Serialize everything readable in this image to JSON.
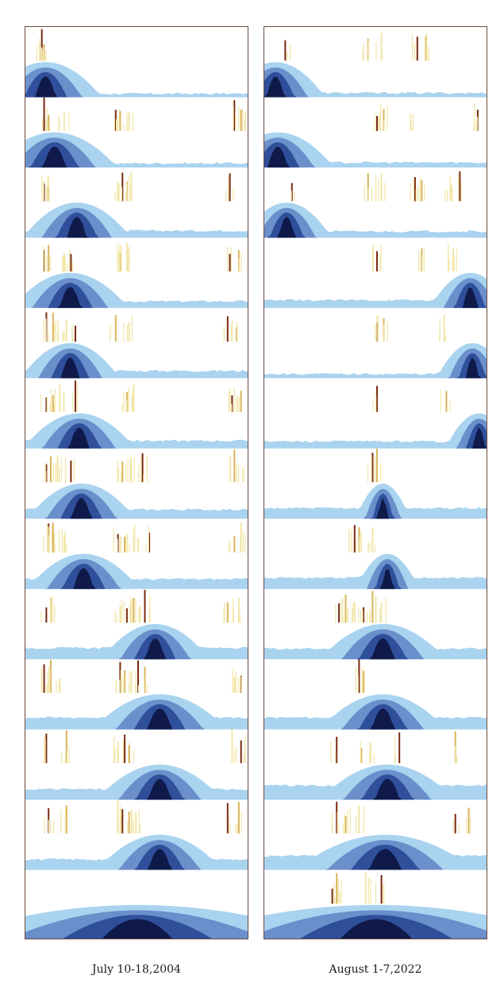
{
  "chart_data": {
    "type": "area",
    "title": "",
    "colors": {
      "band_light": "#a9d3ef",
      "band_mid": "#6b8fcb",
      "band_dark": "#2f4f9a",
      "band_core": "#0f1a4a",
      "event_light": "#f2e6a8",
      "event_mid": "#d9b45a",
      "event_dark": "#7a2a10"
    },
    "panels": [
      {
        "id": "left",
        "caption": "July 10-18,2004",
        "rows": [
          {
            "peak": 0.09,
            "width": 0.25,
            "plateau": 0.1,
            "events": [
              0.07,
              0.08
            ]
          },
          {
            "peak": 0.13,
            "width": 0.28,
            "plateau": 0.12,
            "events": [
              0.08,
              0.1,
              0.17,
              0.4,
              0.42,
              0.46,
              0.93,
              0.96
            ]
          },
          {
            "peak": 0.23,
            "width": 0.24,
            "plateau": 0.2,
            "events": [
              0.08,
              0.1,
              0.41,
              0.43,
              0.45,
              0.47,
              0.91
            ]
          },
          {
            "peak": 0.2,
            "width": 0.26,
            "plateau": 0.19,
            "events": [
              0.08,
              0.1,
              0.17,
              0.2,
              0.42,
              0.45,
              0.91,
              0.95
            ]
          },
          {
            "peak": 0.2,
            "width": 0.22,
            "plateau": 0.21,
            "events": [
              0.09,
              0.12,
              0.18,
              0.22,
              0.4,
              0.46,
              0.9,
              0.94
            ]
          },
          {
            "peak": 0.24,
            "width": 0.25,
            "plateau": 0.22,
            "events": [
              0.09,
              0.12,
              0.15,
              0.22,
              0.45,
              0.48,
              0.92,
              0.96
            ]
          },
          {
            "peak": 0.25,
            "width": 0.24,
            "plateau": 0.26,
            "events": [
              0.09,
              0.11,
              0.14,
              0.2,
              0.43,
              0.47,
              0.52,
              0.93,
              0.97
            ]
          },
          {
            "peak": 0.26,
            "width": 0.25,
            "plateau": 0.28,
            "events": [
              0.1,
              0.12,
              0.17,
              0.41,
              0.44,
              0.5,
              0.55,
              0.93,
              0.96
            ]
          },
          {
            "peak": 0.58,
            "width": 0.24,
            "plateau": 0.32,
            "events": [
              0.09,
              0.11,
              0.42,
              0.45,
              0.48,
              0.51,
              0.53,
              0.9,
              0.95
            ]
          },
          {
            "peak": 0.6,
            "width": 0.3,
            "plateau": 0.34,
            "events": [
              0.08,
              0.11,
              0.15,
              0.42,
              0.44,
              0.47,
              0.5,
              0.53,
              0.93,
              0.96
            ]
          },
          {
            "peak": 0.6,
            "width": 0.28,
            "plateau": 0.3,
            "events": [
              0.09,
              0.18,
              0.41,
              0.44,
              0.46,
              0.92,
              0.96
            ]
          },
          {
            "peak": 0.6,
            "width": 0.28,
            "plateau": 0.3,
            "events": [
              0.1,
              0.18,
              0.41,
              0.43,
              0.46,
              0.49,
              0.9,
              0.95
            ]
          },
          {
            "peak": 0.5,
            "width": 0.9,
            "plateau": 0.2,
            "events": []
          }
        ]
      },
      {
        "id": "right",
        "caption": "August 1-7,2022",
        "rows": [
          {
            "peak": 0.05,
            "width": 0.22,
            "plateau": 0.12,
            "events": [
              0.09,
              0.46,
              0.52,
              0.68,
              0.72
            ]
          },
          {
            "peak": 0.06,
            "width": 0.25,
            "plateau": 0.14,
            "events": [
              0.5,
              0.53,
              0.65,
              0.95
            ]
          },
          {
            "peak": 0.1,
            "width": 0.2,
            "plateau": 0.18,
            "events": [
              0.12,
              0.46,
              0.52,
              0.67,
              0.7,
              0.83,
              0.87
            ]
          },
          {
            "peak": 0.92,
            "width": 0.18,
            "plateau": 0.22,
            "events": [
              0.5,
              0.7,
              0.84
            ]
          },
          {
            "peak": 0.93,
            "width": 0.16,
            "plateau": 0.12,
            "events": [
              0.5,
              0.53,
              0.8
            ]
          },
          {
            "peak": 0.96,
            "width": 0.15,
            "plateau": 0.2,
            "events": [
              0.5,
              0.81
            ]
          },
          {
            "peak": 0.53,
            "width": 0.12,
            "plateau": 0.3,
            "events": [
              0.48,
              0.5
            ]
          },
          {
            "peak": 0.55,
            "width": 0.14,
            "plateau": 0.32,
            "events": [
              0.4,
              0.42,
              0.48
            ]
          },
          {
            "peak": 0.53,
            "width": 0.28,
            "plateau": 0.3,
            "events": [
              0.33,
              0.36,
              0.4,
              0.44,
              0.48,
              0.52
            ]
          },
          {
            "peak": 0.53,
            "width": 0.28,
            "plateau": 0.34,
            "events": [
              0.42,
              0.44
            ]
          },
          {
            "peak": 0.55,
            "width": 0.3,
            "plateau": 0.4,
            "events": [
              0.32,
              0.43,
              0.47,
              0.6,
              0.85
            ]
          },
          {
            "peak": 0.54,
            "width": 0.4,
            "plateau": 0.4,
            "events": [
              0.32,
              0.36,
              0.42,
              0.85,
              0.91
            ]
          },
          {
            "peak": 0.5,
            "width": 0.92,
            "plateau": 0.3,
            "events": [
              0.3,
              0.32,
              0.45,
              0.52
            ]
          }
        ]
      }
    ]
  }
}
